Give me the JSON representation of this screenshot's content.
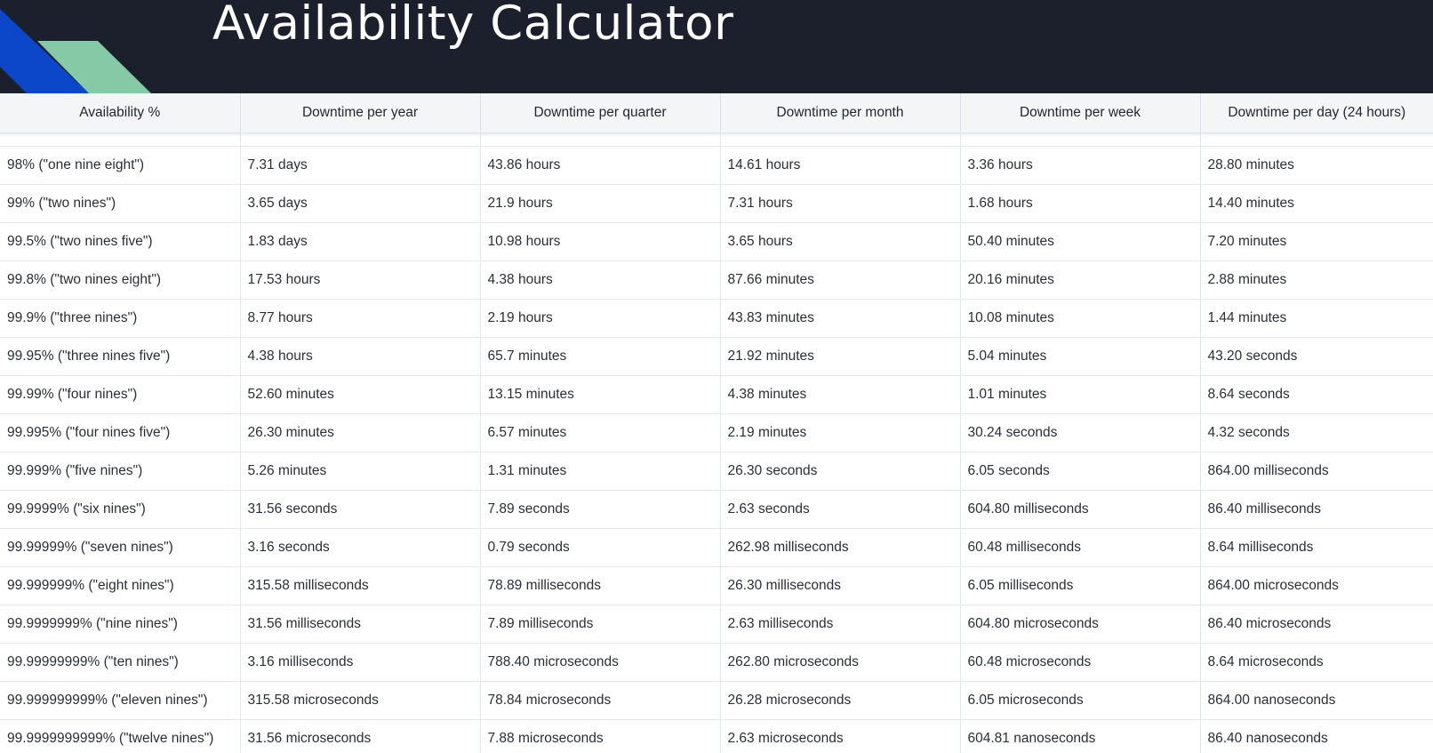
{
  "header": {
    "title": "Availability Calculator",
    "colors": {
      "background": "#1b202c",
      "blue_stripe": "#0d47c9",
      "green_stripe": "#86c9a6"
    }
  },
  "table": {
    "columns": [
      "Availability %",
      "Downtime per year",
      "Downtime per quarter",
      "Downtime per month",
      "Downtime per week",
      "Downtime per day (24 hours)"
    ],
    "rows": [
      [
        "98% (\"one nine eight\")",
        "7.31 days",
        "43.86 hours",
        "14.61 hours",
        "3.36 hours",
        "28.80 minutes"
      ],
      [
        "99% (\"two nines\")",
        "3.65 days",
        "21.9 hours",
        "7.31 hours",
        "1.68 hours",
        "14.40 minutes"
      ],
      [
        "99.5% (\"two nines five\")",
        "1.83 days",
        "10.98 hours",
        "3.65 hours",
        "50.40 minutes",
        "7.20 minutes"
      ],
      [
        "99.8% (\"two nines eight\")",
        "17.53 hours",
        "4.38 hours",
        "87.66 minutes",
        "20.16 minutes",
        "2.88 minutes"
      ],
      [
        "99.9% (\"three nines\")",
        "8.77 hours",
        "2.19 hours",
        "43.83 minutes",
        "10.08 minutes",
        "1.44 minutes"
      ],
      [
        "99.95% (\"three nines five\")",
        "4.38 hours",
        "65.7 minutes",
        "21.92 minutes",
        "5.04 minutes",
        "43.20 seconds"
      ],
      [
        "99.99% (\"four nines\")",
        "52.60 minutes",
        "13.15 minutes",
        "4.38 minutes",
        "1.01 minutes",
        "8.64 seconds"
      ],
      [
        "99.995% (\"four nines five\")",
        "26.30 minutes",
        "6.57 minutes",
        "2.19 minutes",
        "30.24 seconds",
        "4.32 seconds"
      ],
      [
        "99.999% (\"five nines\")",
        "5.26 minutes",
        "1.31 minutes",
        "26.30 seconds",
        "6.05 seconds",
        "864.00 milliseconds"
      ],
      [
        "99.9999% (\"six nines\")",
        "31.56 seconds",
        "7.89 seconds",
        "2.63 seconds",
        "604.80 milliseconds",
        "86.40 milliseconds"
      ],
      [
        "99.99999% (\"seven nines\")",
        "3.16 seconds",
        "0.79 seconds",
        "262.98 milliseconds",
        "60.48 milliseconds",
        "8.64 milliseconds"
      ],
      [
        "99.999999% (\"eight nines\")",
        "315.58 milliseconds",
        "78.89 milliseconds",
        "26.30 milliseconds",
        "6.05 milliseconds",
        "864.00 microseconds"
      ],
      [
        "99.9999999% (\"nine nines\")",
        "31.56 milliseconds",
        "7.89 milliseconds",
        "2.63 milliseconds",
        "604.80 microseconds",
        "86.40 microseconds"
      ],
      [
        "99.99999999% (\"ten nines\")",
        "3.16 milliseconds",
        "788.40 microseconds",
        "262.80 microseconds",
        "60.48 microseconds",
        "8.64 microseconds"
      ],
      [
        "99.999999999% (\"eleven nines\")",
        "315.58 microseconds",
        "78.84 microseconds",
        "26.28 microseconds",
        "6.05 microseconds",
        "864.00 nanoseconds"
      ],
      [
        "99.9999999999% (\"twelve nines\")",
        "31.56 microseconds",
        "7.88 microseconds",
        "2.63 microseconds",
        "604.81 nanoseconds",
        "86.40 nanoseconds"
      ]
    ]
  }
}
